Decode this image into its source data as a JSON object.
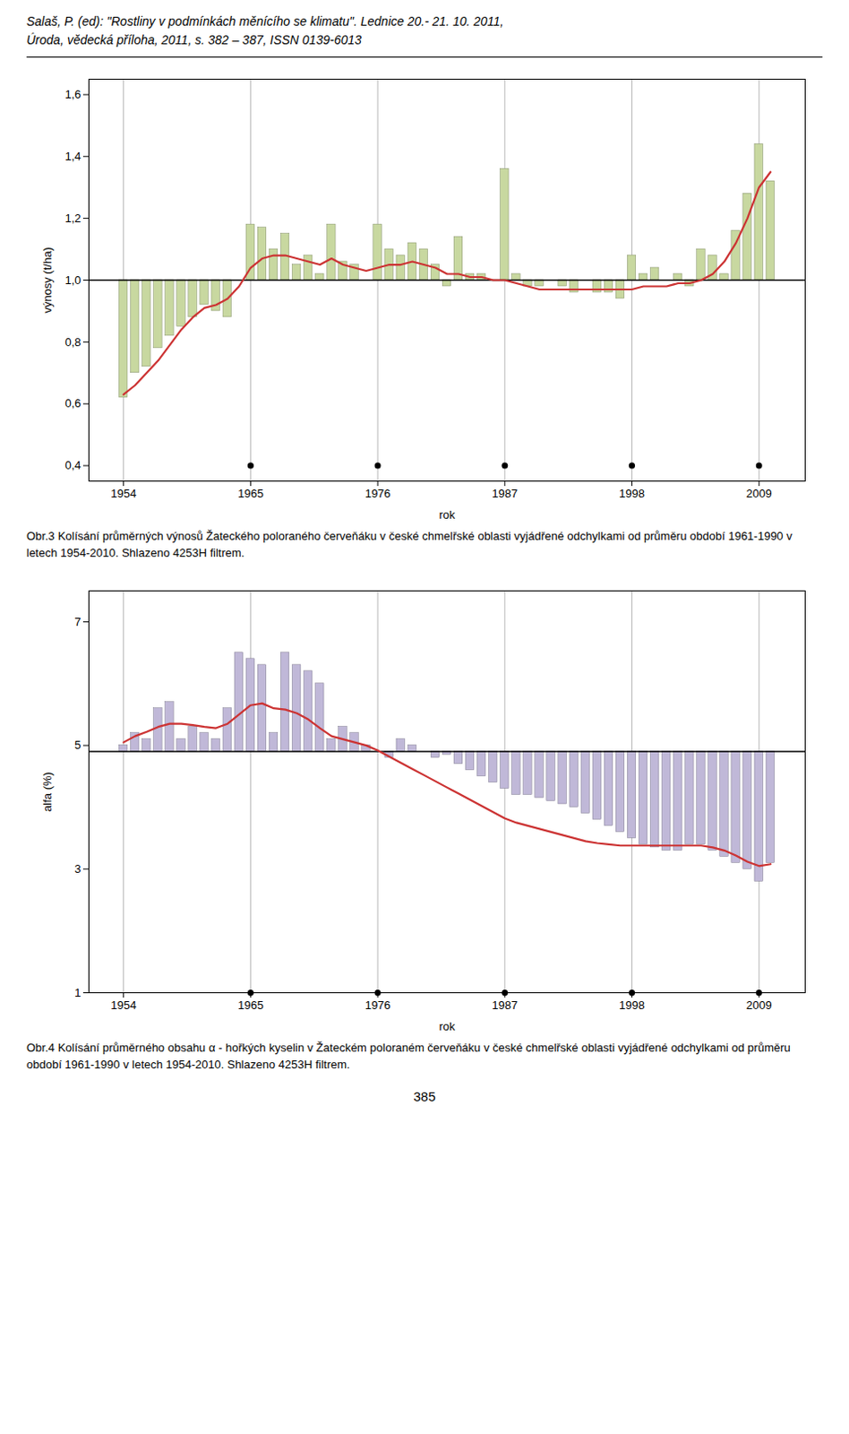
{
  "title": "Salaš, P. (ed): \"Rostliny v podmínkách měnícího se klimatu\". Lednice 20.- 21. 10. 2011,",
  "subtitle": "Úroda, vědecká příloha, 2011, s. 382 – 387,  ISSN 0139-6013",
  "footer": "385",
  "chart_data": [
    {
      "type": "bar",
      "ylabel": "výnosy (t/ha)",
      "xlabel": "rok",
      "caption": "Obr.3 Kolísání průměrných výnosů Žateckého poloraného červeňáku v české chmelřské oblasti vyjádřené odchylkami od průměru období 1961-1990 v letech 1954-2010. Shlazeno 4253H filtrem.",
      "xlim": [
        1951,
        2013
      ],
      "xticks": [
        1954,
        1965,
        1976,
        1987,
        1998,
        2009
      ],
      "ylim": [
        0.35,
        1.65
      ],
      "yticks": [
        {
          "value": 0.4,
          "label": "0,4"
        },
        {
          "value": 0.6,
          "label": "0,6"
        },
        {
          "value": 0.8,
          "label": "0,8"
        },
        {
          "value": 1.0,
          "label": "1,0"
        },
        {
          "value": 1.2,
          "label": "1,2"
        },
        {
          "value": 1.4,
          "label": "1,4"
        },
        {
          "value": 1.6,
          "label": "1,6"
        }
      ],
      "grid": "x",
      "baseline": 1.0,
      "x": [
        1954,
        1955,
        1956,
        1957,
        1958,
        1959,
        1960,
        1961,
        1962,
        1963,
        1964,
        1965,
        1966,
        1967,
        1968,
        1969,
        1970,
        1971,
        1972,
        1973,
        1974,
        1975,
        1976,
        1977,
        1978,
        1979,
        1980,
        1981,
        1982,
        1983,
        1984,
        1985,
        1986,
        1987,
        1988,
        1989,
        1990,
        1991,
        1992,
        1993,
        1994,
        1995,
        1996,
        1997,
        1998,
        1999,
        2000,
        2001,
        2002,
        2003,
        2004,
        2005,
        2006,
        2007,
        2008,
        2009,
        2010
      ],
      "series": [
        {
          "type": "bar",
          "color": "#c8d8a0",
          "values": [
            0.62,
            0.7,
            0.72,
            0.78,
            0.82,
            0.85,
            0.88,
            0.92,
            0.9,
            0.88,
            1.0,
            1.18,
            1.17,
            1.1,
            1.15,
            1.05,
            1.08,
            1.02,
            1.18,
            1.06,
            1.05,
            1.0,
            1.18,
            1.1,
            1.08,
            1.12,
            1.1,
            1.05,
            0.98,
            1.14,
            1.02,
            1.02,
            1.0,
            1.36,
            1.02,
            0.98,
            0.98,
            1.0,
            0.98,
            0.96,
            1.0,
            0.96,
            0.96,
            0.94,
            1.08,
            1.02,
            1.04,
            1.0,
            1.02,
            0.98,
            1.1,
            1.08,
            1.02,
            1.16,
            1.28,
            1.44,
            1.32
          ]
        },
        {
          "type": "line",
          "color": "#cc3333",
          "values": [
            0.63,
            0.66,
            0.7,
            0.74,
            0.79,
            0.84,
            0.88,
            0.91,
            0.92,
            0.94,
            0.98,
            1.04,
            1.07,
            1.08,
            1.08,
            1.07,
            1.06,
            1.05,
            1.07,
            1.05,
            1.04,
            1.03,
            1.04,
            1.05,
            1.05,
            1.06,
            1.05,
            1.04,
            1.02,
            1.02,
            1.01,
            1.01,
            1.0,
            1.0,
            0.99,
            0.98,
            0.97,
            0.97,
            0.97,
            0.97,
            0.97,
            0.97,
            0.97,
            0.97,
            0.97,
            0.98,
            0.98,
            0.98,
            0.99,
            0.99,
            1.0,
            1.02,
            1.06,
            1.12,
            1.2,
            1.3,
            1.35
          ]
        },
        {
          "type": "scatter",
          "marker": "o",
          "color": "#000000",
          "x": [
            1965,
            1976,
            1987,
            1998,
            2009
          ],
          "values": [
            0.4,
            0.4,
            0.4,
            0.4,
            0.4
          ]
        }
      ]
    },
    {
      "type": "bar",
      "ylabel": "alfa (%)",
      "xlabel": "rok",
      "caption": "Obr.4 Kolísání průměrného obsahu α - hořkých kyselin v Žateckém poloraném červeňáku v české chmelřské oblasti vyjádřené odchylkami od průměru období 1961-1990 v letech 1954-2010. Shlazeno 4253H filtrem.",
      "xlim": [
        1951,
        2013
      ],
      "xticks": [
        1954,
        1965,
        1976,
        1987,
        1998,
        2009
      ],
      "ylim": [
        1.0,
        7.5
      ],
      "yticks": [
        1,
        3,
        5,
        7
      ],
      "grid": "x",
      "baseline": 4.9,
      "x": [
        1954,
        1955,
        1956,
        1957,
        1958,
        1959,
        1960,
        1961,
        1962,
        1963,
        1964,
        1965,
        1966,
        1967,
        1968,
        1969,
        1970,
        1971,
        1972,
        1973,
        1974,
        1975,
        1976,
        1977,
        1978,
        1979,
        1980,
        1981,
        1982,
        1983,
        1984,
        1985,
        1986,
        1987,
        1988,
        1989,
        1990,
        1991,
        1992,
        1993,
        1994,
        1995,
        1996,
        1997,
        1998,
        1999,
        2000,
        2001,
        2002,
        2003,
        2004,
        2005,
        2006,
        2007,
        2008,
        2009,
        2010
      ],
      "series": [
        {
          "type": "bar",
          "color": "#c0b8d8",
          "values": [
            5.0,
            5.2,
            5.1,
            5.6,
            5.7,
            5.1,
            5.3,
            5.2,
            5.1,
            5.6,
            6.5,
            6.4,
            6.3,
            5.2,
            6.5,
            6.3,
            6.2,
            6.0,
            5.1,
            5.3,
            5.2,
            5.0,
            4.9,
            4.8,
            5.1,
            5.0,
            4.9,
            4.8,
            4.85,
            4.7,
            4.6,
            4.5,
            4.4,
            4.3,
            4.2,
            4.2,
            4.15,
            4.1,
            4.05,
            4.0,
            3.9,
            3.8,
            3.7,
            3.6,
            3.5,
            3.4,
            3.35,
            3.3,
            3.3,
            3.4,
            3.4,
            3.3,
            3.2,
            3.1,
            3.0,
            2.8,
            3.1
          ]
        },
        {
          "type": "line",
          "color": "#cc3333",
          "values": [
            5.05,
            5.15,
            5.22,
            5.3,
            5.35,
            5.35,
            5.33,
            5.3,
            5.28,
            5.35,
            5.5,
            5.65,
            5.68,
            5.6,
            5.58,
            5.52,
            5.42,
            5.28,
            5.15,
            5.1,
            5.05,
            5.0,
            4.92,
            4.82,
            4.72,
            4.62,
            4.52,
            4.42,
            4.32,
            4.22,
            4.12,
            4.02,
            3.92,
            3.82,
            3.75,
            3.7,
            3.65,
            3.6,
            3.55,
            3.5,
            3.45,
            3.42,
            3.4,
            3.38,
            3.38,
            3.38,
            3.38,
            3.38,
            3.38,
            3.38,
            3.38,
            3.35,
            3.3,
            3.22,
            3.12,
            3.05,
            3.08
          ]
        },
        {
          "type": "scatter",
          "marker": "o",
          "color": "#000000",
          "x": [
            1965,
            1976,
            1987,
            1998,
            2009
          ],
          "values": [
            1.0,
            1.0,
            1.0,
            1.0,
            1.0
          ]
        }
      ]
    }
  ]
}
